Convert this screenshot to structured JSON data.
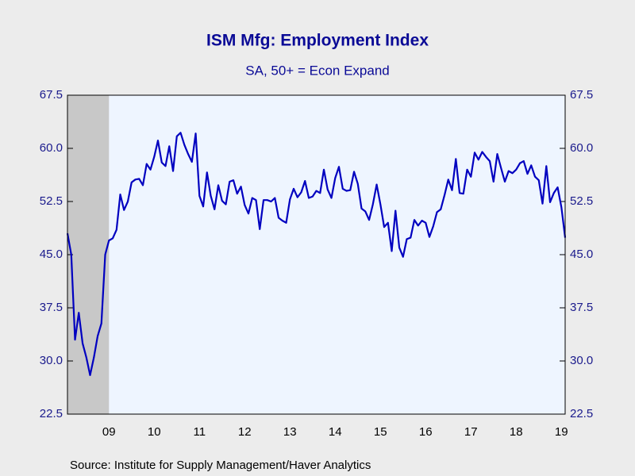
{
  "chart_data": {
    "type": "line",
    "title": "ISM Mfg: Employment Index",
    "subtitle": "SA, 50+ = Econ Expand",
    "source": "Source:  Institute for Supply Management/Haver Analytics",
    "xlim": [
      2008.583,
      2019.583
    ],
    "xticks": [
      {
        "value": 2009.5,
        "label": "09"
      },
      {
        "value": 2010.5,
        "label": "10"
      },
      {
        "value": 2011.5,
        "label": "11"
      },
      {
        "value": 2012.5,
        "label": "12"
      },
      {
        "value": 2013.5,
        "label": "13"
      },
      {
        "value": 2014.5,
        "label": "14"
      },
      {
        "value": 2015.5,
        "label": "15"
      },
      {
        "value": 2016.5,
        "label": "16"
      },
      {
        "value": 2017.5,
        "label": "17"
      },
      {
        "value": 2018.5,
        "label": "18"
      },
      {
        "value": 2019.5,
        "label": "19"
      }
    ],
    "ylim": [
      22.5,
      67.5
    ],
    "yticks": [
      22.5,
      {
        "value": 30,
        "label": "30.0"
      },
      37.5,
      {
        "value": 45,
        "label": "45.0"
      },
      52.5,
      {
        "value": 60,
        "label": "60.0"
      },
      67.5
    ],
    "recession": [
      2008.583,
      2009.5
    ],
    "x": [
      2008.583,
      2008.667,
      2008.75,
      2008.833,
      2008.917,
      2009.0,
      2009.083,
      2009.167,
      2009.25,
      2009.333,
      2009.417,
      2009.5,
      2009.583,
      2009.667,
      2009.75,
      2009.833,
      2009.917,
      2010.0,
      2010.083,
      2010.167,
      2010.25,
      2010.333,
      2010.417,
      2010.5,
      2010.583,
      2010.667,
      2010.75,
      2010.833,
      2010.917,
      2011.0,
      2011.083,
      2011.167,
      2011.25,
      2011.333,
      2011.417,
      2011.5,
      2011.583,
      2011.667,
      2011.75,
      2011.833,
      2011.917,
      2012.0,
      2012.083,
      2012.167,
      2012.25,
      2012.333,
      2012.417,
      2012.5,
      2012.583,
      2012.667,
      2012.75,
      2012.833,
      2012.917,
      2013.0,
      2013.083,
      2013.167,
      2013.25,
      2013.333,
      2013.417,
      2013.5,
      2013.583,
      2013.667,
      2013.75,
      2013.833,
      2013.917,
      2014.0,
      2014.083,
      2014.167,
      2014.25,
      2014.333,
      2014.417,
      2014.5,
      2014.583,
      2014.667,
      2014.75,
      2014.833,
      2014.917,
      2015.0,
      2015.083,
      2015.167,
      2015.25,
      2015.333,
      2015.417,
      2015.5,
      2015.583,
      2015.667,
      2015.75,
      2015.833,
      2015.917,
      2016.0,
      2016.083,
      2016.167,
      2016.25,
      2016.333,
      2016.417,
      2016.5,
      2016.583,
      2016.667,
      2016.75,
      2016.833,
      2016.917,
      2017.0,
      2017.083,
      2017.167,
      2017.25,
      2017.333,
      2017.417,
      2017.5,
      2017.583,
      2017.667,
      2017.75,
      2017.833,
      2017.917,
      2018.0,
      2018.083,
      2018.167,
      2018.25,
      2018.333,
      2018.417,
      2018.5,
      2018.583,
      2018.667,
      2018.75,
      2018.833,
      2018.917,
      2019.0,
      2019.083,
      2019.167,
      2019.25,
      2019.333,
      2019.417,
      2019.5,
      2019.583
    ],
    "series": [
      {
        "name": "ISM Mfg: Employment Index",
        "color": "#0000c0",
        "values": [
          48.0,
          45.0,
          33.0,
          36.8,
          32.5,
          30.5,
          28.0,
          30.5,
          33.5,
          35.3,
          45.0,
          47.0,
          47.3,
          48.5,
          53.5,
          51.3,
          52.5,
          55.2,
          55.6,
          55.7,
          54.8,
          57.8,
          57.0,
          58.8,
          61.1,
          58.0,
          57.5,
          60.3,
          56.8,
          61.7,
          62.2,
          60.5,
          59.2,
          58.1,
          62.1,
          53.3,
          51.8,
          56.6,
          53.3,
          51.4,
          54.8,
          52.6,
          52.1,
          55.3,
          55.5,
          53.6,
          54.6,
          52.0,
          50.8,
          53.0,
          52.7,
          48.6,
          52.7,
          52.7,
          52.5,
          53.0,
          50.2,
          49.8,
          49.5,
          52.8,
          54.3,
          53.1,
          53.8,
          55.4,
          53.0,
          53.2,
          54.0,
          53.7,
          57.0,
          54.2,
          53.0,
          55.8,
          57.4,
          54.3,
          54.0,
          54.1,
          56.7,
          55.0,
          51.5,
          51.1,
          49.9,
          52.1,
          54.9,
          52.1,
          48.9,
          49.5,
          45.5,
          51.2,
          46.0,
          44.7,
          47.2,
          47.4,
          49.9,
          49.1,
          49.8,
          49.5,
          47.5,
          49.0,
          51.0,
          51.4,
          53.4,
          55.6,
          54.1,
          58.5,
          53.7,
          53.6,
          57.0,
          56.0,
          59.4,
          58.4,
          59.5,
          58.8,
          58.2,
          55.3,
          59.2,
          57.2,
          55.3,
          56.8,
          56.5,
          57.0,
          57.9,
          58.2,
          56.4,
          57.6,
          56.0,
          55.5,
          52.2,
          57.5,
          52.4,
          53.7,
          54.5,
          51.7,
          47.4
        ]
      }
    ]
  }
}
